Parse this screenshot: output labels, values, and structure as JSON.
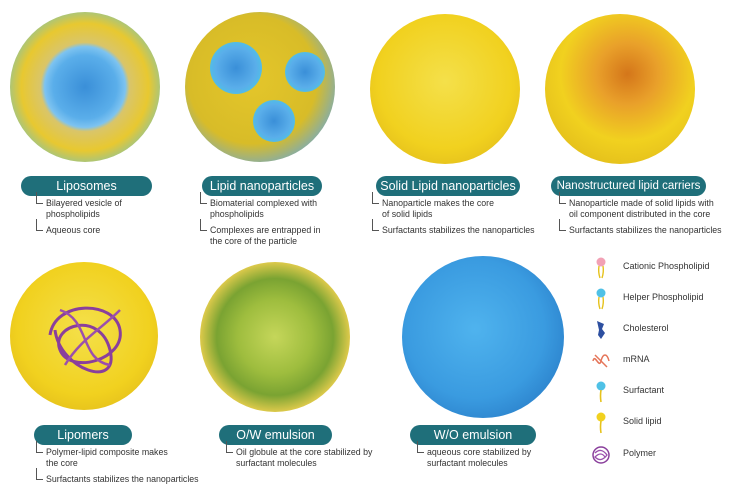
{
  "particles": [
    {
      "title": "Liposomes",
      "bullets": [
        "Bilayered vesicle of\nphospholipids",
        "Aqueous core"
      ]
    },
    {
      "title": "Lipid nanoparticles",
      "bullets": [
        "Biomaterial complexed with\nphospholipids",
        "Complexes are entrapped in\nthe core of the particle"
      ]
    },
    {
      "title": "Solid Lipid nanoparticles",
      "bullets": [
        "Nanoparticle makes the core\nof solid lipids",
        "Surfactants stabilizes the nanoparticles"
      ]
    },
    {
      "title": "Nanostructured lipid carriers",
      "bullets": [
        "Nanoparticle made of solid lipids with\noil component distributed in the core",
        "Surfactants stabilizes the nanoparticles"
      ]
    },
    {
      "title": "Lipomers",
      "bullets": [
        "Polymer-lipid composite makes\nthe core",
        "Surfactants stabilizes the nanoparticles"
      ]
    },
    {
      "title": "O/W emulsion",
      "bullets": [
        "Oil globule at the core stabilized by\nsurfactant molecules"
      ]
    },
    {
      "title": "W/O emulsion",
      "bullets": [
        "aqueous core stabilized by\nsurfactant molecules"
      ]
    }
  ],
  "legend": [
    {
      "label": "Cationic Phospholipid",
      "icon": "cationic-phospholipid-icon",
      "color": "#f2a1b5"
    },
    {
      "label": "Helper Phospholipid",
      "icon": "helper-phospholipid-icon",
      "color": "#4fc1e6"
    },
    {
      "label": "Cholesterol",
      "icon": "cholesterol-icon",
      "color": "#2d4fa0"
    },
    {
      "label": "mRNA",
      "icon": "mrna-icon",
      "color": "#e5765a"
    },
    {
      "label": "Surfactant",
      "icon": "surfactant-icon",
      "color": "#4fc1e6"
    },
    {
      "label": "Solid lipid",
      "icon": "solid-lipid-icon",
      "color": "#f1d11f"
    },
    {
      "label": "Polymer",
      "icon": "polymer-icon",
      "color": "#8a3f9c"
    }
  ],
  "colors": {
    "pill": "#1f6f7a",
    "lipid": "#f1d11f",
    "helper": "#4fc1e6",
    "cationic": "#f2a1b5",
    "polymer": "#8a3f9c"
  }
}
